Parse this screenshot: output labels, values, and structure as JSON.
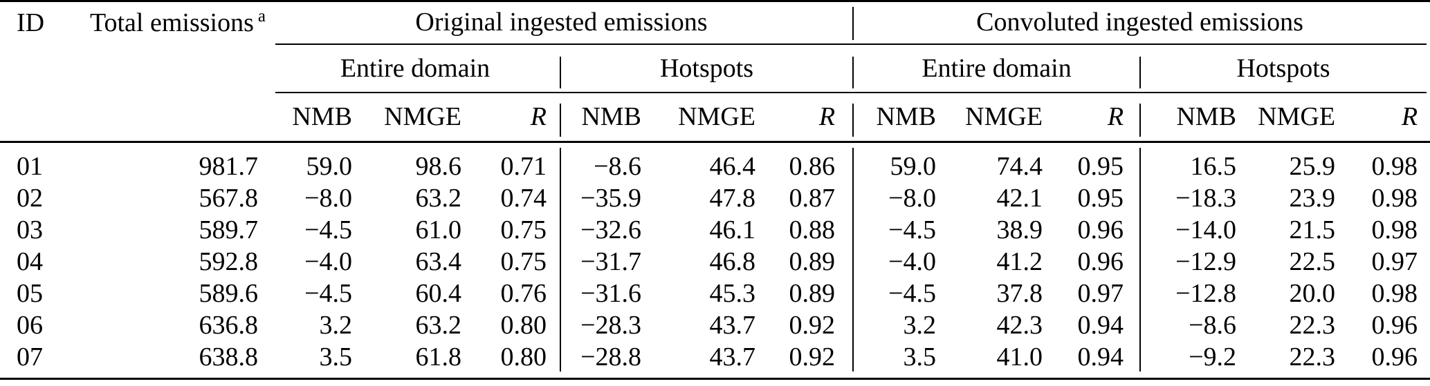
{
  "page": {
    "background_color": "#ffffff",
    "text_color": "#000000"
  },
  "table": {
    "header": {
      "id": "ID",
      "total_emissions": "Total emissions",
      "footnote_marker": "a",
      "groups": [
        "Original ingested emissions",
        "Convoluted ingested emissions"
      ],
      "subgroups": [
        "Entire domain",
        "Hotspots",
        "Entire domain",
        "Hotspots"
      ],
      "metrics": [
        "NMB",
        "NMGE",
        "R"
      ]
    },
    "rows": [
      [
        "01",
        "981.7",
        "59.0",
        "98.6",
        "0.71",
        "−8.6",
        "46.4",
        "0.86",
        "59.0",
        "74.4",
        "0.95",
        "16.5",
        "25.9",
        "0.98"
      ],
      [
        "02",
        "567.8",
        "−8.0",
        "63.2",
        "0.74",
        "−35.9",
        "47.8",
        "0.87",
        "−8.0",
        "42.1",
        "0.95",
        "−18.3",
        "23.9",
        "0.98"
      ],
      [
        "03",
        "589.7",
        "−4.5",
        "61.0",
        "0.75",
        "−32.6",
        "46.1",
        "0.88",
        "−4.5",
        "38.9",
        "0.96",
        "−14.0",
        "21.5",
        "0.98"
      ],
      [
        "04",
        "592.8",
        "−4.0",
        "63.4",
        "0.75",
        "−31.7",
        "46.8",
        "0.89",
        "−4.0",
        "41.2",
        "0.96",
        "−12.9",
        "22.5",
        "0.97"
      ],
      [
        "05",
        "589.6",
        "−4.5",
        "60.4",
        "0.76",
        "−31.6",
        "45.3",
        "0.89",
        "−4.5",
        "37.8",
        "0.97",
        "−12.8",
        "20.0",
        "0.98"
      ],
      [
        "06",
        "636.8",
        "3.2",
        "63.2",
        "0.80",
        "−28.3",
        "43.7",
        "0.92",
        "3.2",
        "42.3",
        "0.94",
        "−8.6",
        "22.3",
        "0.96"
      ],
      [
        "07",
        "638.8",
        "3.5",
        "61.8",
        "0.80",
        "−28.8",
        "43.7",
        "0.92",
        "3.5",
        "41.0",
        "0.94",
        "−9.2",
        "22.3",
        "0.96"
      ]
    ]
  }
}
